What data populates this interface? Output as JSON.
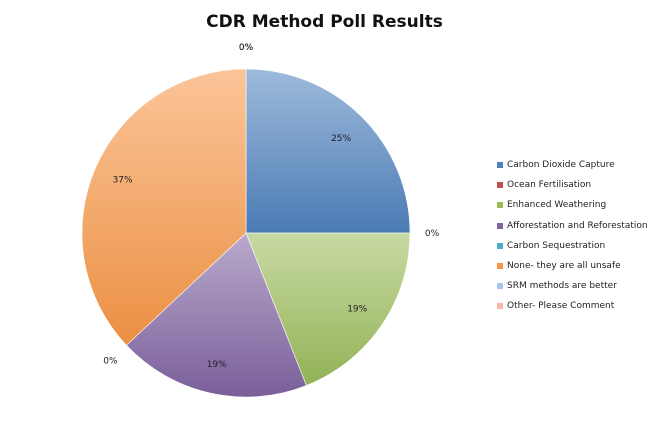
{
  "chart_data": {
    "type": "pie",
    "title": "CDR Method Poll Results",
    "categories": [
      "Carbon Dioxide Capture",
      "Ocean Fertilisation",
      "Enhanced Weathering",
      "Afforestation and Reforestation",
      "Carbon Sequestration",
      "None- they are all unsafe",
      "SRM methods are better",
      "Other- Please Comment"
    ],
    "values": [
      25,
      0,
      19,
      19,
      0,
      37,
      0,
      0
    ],
    "data_labels": [
      "25%",
      "0%",
      "19%",
      "19%",
      "0%",
      "37%",
      "0%",
      "0%"
    ],
    "colors": [
      "#4f81bd",
      "#c0504d",
      "#9bbb59",
      "#8064a2",
      "#4bacc6",
      "#f79646",
      "#a9c4eb",
      "#f4b9a6"
    ],
    "start_angle_deg": 0,
    "direction": "clockwise",
    "legend_position": "right"
  }
}
